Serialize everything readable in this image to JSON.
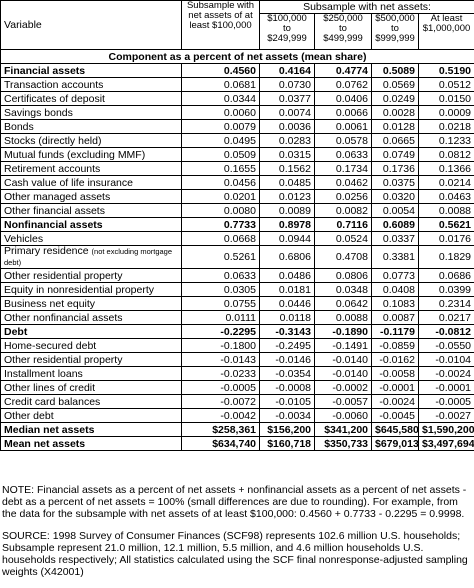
{
  "header": {
    "variable": "Variable",
    "full_sample": "Subsample with net assets of at least $100,000",
    "group": "Subsample with net assets:",
    "cols": [
      "$100,000 to $249,999",
      "$250,000 to $499,999",
      "$500,000 to $999,999",
      "At least $1,000,000"
    ]
  },
  "section_title": "Component as a percent of net assets (mean share)",
  "rows": [
    {
      "label": "Financial assets",
      "v": [
        "0.4560",
        "0.4164",
        "0.4774",
        "0.5089",
        "0.5190"
      ]
    },
    {
      "label": "Transaction accounts",
      "v": [
        "0.0681",
        "0.0730",
        "0.0762",
        "0.0569",
        "0.0512"
      ]
    },
    {
      "label": "Certificates of deposit",
      "v": [
        "0.0344",
        "0.0377",
        "0.0406",
        "0.0249",
        "0.0150"
      ]
    },
    {
      "label": "Savings bonds",
      "v": [
        "0.0060",
        "0.0074",
        "0.0066",
        "0.0028",
        "0.0009"
      ]
    },
    {
      "label": "Bonds",
      "v": [
        "0.0079",
        "0.0036",
        "0.0061",
        "0.0128",
        "0.0218"
      ]
    },
    {
      "label": "Stocks (directly held)",
      "v": [
        "0.0495",
        "0.0283",
        "0.0578",
        "0.0665",
        "0.1233"
      ]
    },
    {
      "label": "Mutual funds (excluding MMF)",
      "v": [
        "0.0509",
        "0.0315",
        "0.0633",
        "0.0749",
        "0.0812"
      ]
    },
    {
      "label": "Retirement accounts",
      "v": [
        "0.1655",
        "0.1562",
        "0.1734",
        "0.1736",
        "0.1366"
      ]
    },
    {
      "label": "Cash value of life insurance",
      "v": [
        "0.0456",
        "0.0485",
        "0.0462",
        "0.0375",
        "0.0214"
      ]
    },
    {
      "label": "Other managed assets",
      "v": [
        "0.0201",
        "0.0123",
        "0.0256",
        "0.0320",
        "0.0463"
      ]
    },
    {
      "label": "Other financial assets",
      "v": [
        "0.0080",
        "0.0089",
        "0.0082",
        "0.0054",
        "0.0088"
      ]
    },
    {
      "label": "Nonfinancial assets",
      "v": [
        "0.7733",
        "0.8978",
        "0.7116",
        "0.6089",
        "0.5621"
      ]
    },
    {
      "label": "Vehicles",
      "v": [
        "0.0668",
        "0.0944",
        "0.0524",
        "0.0337",
        "0.0176"
      ]
    },
    {
      "label": "Primary residence",
      "note": "(not excluding mortgage debt)",
      "v": [
        "0.5261",
        "0.6806",
        "0.4708",
        "0.3381",
        "0.1829"
      ]
    },
    {
      "label": "Other residential property",
      "v": [
        "0.0633",
        "0.0486",
        "0.0806",
        "0.0773",
        "0.0686"
      ]
    },
    {
      "label": "Equity in nonresidential property",
      "v": [
        "0.0305",
        "0.0181",
        "0.0348",
        "0.0408",
        "0.0399"
      ]
    },
    {
      "label": "Business net equity",
      "v": [
        "0.0755",
        "0.0446",
        "0.0642",
        "0.1083",
        "0.2314"
      ]
    },
    {
      "label": "Other nonfinancial assets",
      "v": [
        "0.0111",
        "0.0118",
        "0.0088",
        "0.0087",
        "0.0217"
      ]
    },
    {
      "label": "Debt",
      "v": [
        "-0.2295",
        "-0.3143",
        "-0.1890",
        "-0.1179",
        "-0.0812"
      ]
    },
    {
      "label": "Home-secured debt",
      "v": [
        "-0.1800",
        "-0.2495",
        "-0.1491",
        "-0.0859",
        "-0.0550"
      ]
    },
    {
      "label": "Other residential property",
      "v": [
        "-0.0143",
        "-0.0146",
        "-0.0140",
        "-0.0162",
        "-0.0104"
      ]
    },
    {
      "label": "Installment loans",
      "v": [
        "-0.0233",
        "-0.0354",
        "-0.0140",
        "-0.0058",
        "-0.0024"
      ]
    },
    {
      "label": "Other lines of credit",
      "v": [
        "-0.0005",
        "-0.0008",
        "-0.0002",
        "-0.0001",
        "-0.0001"
      ]
    },
    {
      "label": "Credit card balances",
      "v": [
        "-0.0072",
        "-0.0105",
        "-0.0057",
        "-0.0024",
        "-0.0005"
      ]
    },
    {
      "label": "Other debt",
      "v": [
        "-0.0042",
        "-0.0034",
        "-0.0060",
        "-0.0045",
        "-0.0027"
      ]
    },
    {
      "label": "Median net assets",
      "v": [
        "$258,361",
        "$156,200",
        "$341,200",
        "$645,580",
        "$1,590,200"
      ]
    },
    {
      "label": "Mean net assets",
      "v": [
        "$634,740",
        "$160,718",
        "$350,733",
        "$679,013",
        "$3,497,694"
      ]
    }
  ],
  "notes": {
    "note": "NOTE: Financial assets as a percent of net assets + nonfinancial assets as a percent of net assets - debt as a percent of net assets = 100% (small differences are due to rounding). For example, from the data for the subsample with net assets of at least $100,000:   0.4560 + 0.7733 - 0.2295 = 0.9998.",
    "source": "SOURCE: 1998 Survey of Consumer Finances (SCF98) represents 102.6 million U.S. households; Subsample represent 21.0 million, 12.1 million, 5.5 million, and 4.6 million households U.S. households respectively; All statistics calculated using the SCF final nonresponse-adjusted sampling weights (X42001)"
  }
}
